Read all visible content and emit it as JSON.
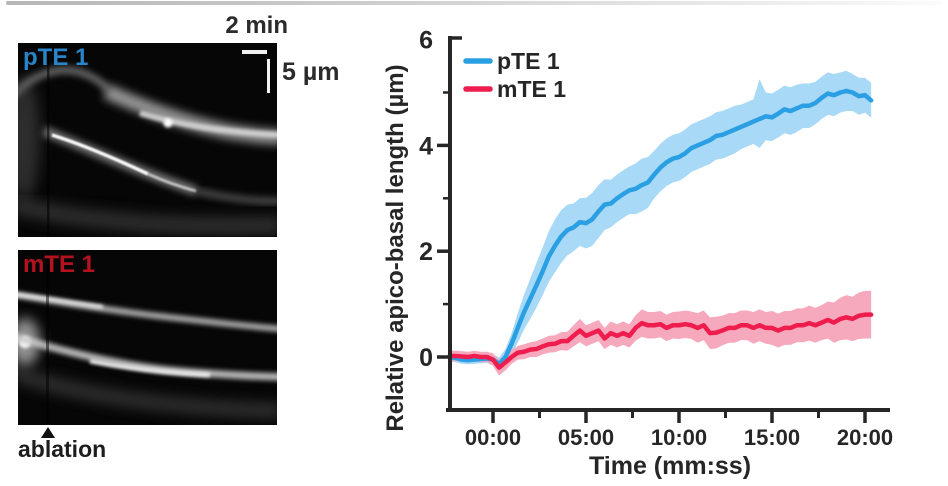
{
  "page": {
    "left_panel": {
      "time_scalebar_label": "2 min",
      "length_scalebar_label": "5 µm",
      "kymographs": [
        {
          "label": "pTE 1",
          "label_color": "#2a84c8"
        },
        {
          "label": "mTE 1",
          "label_color": "#b5121f"
        }
      ],
      "ablation": {
        "marker": "▲",
        "label": "ablation"
      }
    }
  },
  "chart_data": {
    "type": "line",
    "title": "",
    "xlabel": "Time (mm:ss)",
    "ylabel": "Relative apico-basal length (µm)",
    "x_unit": "minutes relative to ablation",
    "xlim": [
      -2.4,
      21.3
    ],
    "ylim": [
      -1.0,
      6.2
    ],
    "grid": false,
    "axis_color": "#262626",
    "text_color": "#262626",
    "x_ticks": {
      "major_values": [
        0,
        5,
        10,
        15,
        20
      ],
      "major_labels": [
        "00:00",
        "05:00",
        "10:00",
        "15:00",
        "20:00"
      ],
      "minor_values": [
        2.5,
        7.5,
        12.5,
        17.5
      ]
    },
    "y_ticks": {
      "major_values": [
        0,
        2,
        4,
        6
      ],
      "major_labels": [
        "0",
        "2",
        "4",
        "6"
      ],
      "minor_values": [
        1,
        3,
        5
      ]
    },
    "legend": {
      "position": "top-left",
      "entries": [
        "pTE 1",
        "mTE 1"
      ]
    },
    "x": [
      -2.33,
      -2.0,
      -1.67,
      -1.33,
      -1.0,
      -0.67,
      -0.33,
      0.0,
      0.33,
      0.67,
      1.0,
      1.33,
      1.67,
      2.0,
      2.33,
      2.67,
      3.0,
      3.33,
      3.67,
      4.0,
      4.33,
      4.67,
      5.0,
      5.33,
      5.67,
      6.0,
      6.33,
      6.67,
      7.0,
      7.33,
      7.67,
      8.0,
      8.33,
      8.67,
      9.0,
      9.33,
      9.67,
      10.0,
      10.33,
      10.67,
      11.0,
      11.33,
      11.67,
      12.0,
      12.33,
      12.67,
      13.0,
      13.33,
      13.67,
      14.0,
      14.33,
      14.67,
      15.0,
      15.33,
      15.67,
      16.0,
      16.33,
      16.67,
      17.0,
      17.33,
      17.67,
      18.0,
      18.33,
      18.67,
      19.0,
      19.33,
      19.67,
      20.0,
      20.33
    ],
    "series": [
      {
        "name": "pTE 1",
        "line_color": "#2b9fe3",
        "band_color": "#a8d9f6",
        "y": [
          0.0,
          -0.02,
          -0.05,
          -0.06,
          -0.05,
          -0.04,
          -0.03,
          -0.05,
          -0.13,
          0.0,
          0.25,
          0.55,
          0.85,
          1.1,
          1.35,
          1.62,
          1.9,
          2.1,
          2.28,
          2.4,
          2.45,
          2.55,
          2.53,
          2.6,
          2.75,
          2.88,
          2.9,
          3.0,
          3.08,
          3.15,
          3.18,
          3.25,
          3.3,
          3.45,
          3.58,
          3.68,
          3.75,
          3.78,
          3.85,
          3.95,
          4.0,
          4.05,
          4.1,
          4.18,
          4.2,
          4.25,
          4.3,
          4.35,
          4.4,
          4.45,
          4.5,
          4.55,
          4.53,
          4.6,
          4.68,
          4.65,
          4.7,
          4.75,
          4.75,
          4.8,
          4.9,
          4.98,
          4.95,
          5.0,
          5.03,
          5.0,
          4.93,
          4.95,
          4.85
        ],
        "y_upper": [
          0.08,
          0.06,
          0.03,
          0.02,
          0.03,
          0.04,
          0.05,
          0.05,
          -0.01,
          0.15,
          0.45,
          0.83,
          1.18,
          1.48,
          1.77,
          2.07,
          2.38,
          2.6,
          2.78,
          2.88,
          2.9,
          3.0,
          3.01,
          3.1,
          3.25,
          3.36,
          3.35,
          3.45,
          3.53,
          3.6,
          3.66,
          3.75,
          3.78,
          3.9,
          4.03,
          4.13,
          4.2,
          4.23,
          4.3,
          4.4,
          4.45,
          4.5,
          4.55,
          4.63,
          4.65,
          4.7,
          4.75,
          4.77,
          4.82,
          4.87,
          5.25,
          5.0,
          4.98,
          5.05,
          5.13,
          5.1,
          5.15,
          5.17,
          5.17,
          5.2,
          5.3,
          5.38,
          5.35,
          5.38,
          5.41,
          5.35,
          5.28,
          5.28,
          5.18
        ],
        "y_lower": [
          -0.08,
          -0.1,
          -0.13,
          -0.14,
          -0.13,
          -0.12,
          -0.11,
          -0.15,
          -0.25,
          -0.15,
          0.05,
          0.27,
          0.52,
          0.72,
          0.93,
          1.17,
          1.42,
          1.6,
          1.78,
          1.92,
          2.0,
          2.1,
          2.05,
          2.1,
          2.25,
          2.4,
          2.45,
          2.55,
          2.63,
          2.7,
          2.7,
          2.75,
          2.82,
          3.0,
          3.13,
          3.23,
          3.3,
          3.33,
          3.4,
          3.5,
          3.55,
          3.6,
          3.65,
          3.73,
          3.75,
          3.8,
          3.85,
          3.93,
          3.98,
          4.03,
          3.95,
          4.1,
          4.08,
          4.15,
          4.23,
          4.2,
          4.25,
          4.33,
          4.33,
          4.4,
          4.5,
          4.58,
          4.55,
          4.62,
          4.65,
          4.65,
          4.58,
          4.62,
          4.52
        ]
      },
      {
        "name": "mTE 1",
        "line_color": "#ee1d4e",
        "band_color": "#f6a9bd",
        "y": [
          0.02,
          0.02,
          0.01,
          0.0,
          0.02,
          0.0,
          0.0,
          -0.05,
          -0.2,
          -0.1,
          0.0,
          0.08,
          0.1,
          0.14,
          0.15,
          0.2,
          0.24,
          0.25,
          0.3,
          0.3,
          0.4,
          0.5,
          0.4,
          0.45,
          0.5,
          0.35,
          0.45,
          0.4,
          0.45,
          0.4,
          0.55,
          0.64,
          0.6,
          0.6,
          0.62,
          0.55,
          0.6,
          0.6,
          0.62,
          0.6,
          0.55,
          0.6,
          0.45,
          0.46,
          0.5,
          0.55,
          0.55,
          0.6,
          0.6,
          0.55,
          0.6,
          0.55,
          0.55,
          0.5,
          0.55,
          0.55,
          0.6,
          0.6,
          0.64,
          0.6,
          0.65,
          0.7,
          0.65,
          0.72,
          0.75,
          0.72,
          0.78,
          0.8,
          0.8
        ],
        "y_upper": [
          0.12,
          0.12,
          0.11,
          0.1,
          0.12,
          0.1,
          0.1,
          0.07,
          -0.05,
          0.05,
          0.13,
          0.21,
          0.24,
          0.28,
          0.3,
          0.35,
          0.4,
          0.41,
          0.47,
          0.48,
          0.6,
          0.72,
          0.6,
          0.65,
          0.7,
          0.55,
          0.67,
          0.62,
          0.67,
          0.62,
          0.79,
          0.9,
          0.85,
          0.85,
          0.87,
          0.8,
          0.85,
          0.86,
          0.88,
          0.86,
          0.83,
          0.88,
          0.75,
          0.76,
          0.78,
          0.83,
          0.83,
          0.88,
          0.88,
          0.85,
          0.9,
          0.85,
          0.87,
          0.82,
          0.87,
          0.87,
          0.92,
          0.92,
          0.97,
          0.93,
          0.98,
          1.05,
          1.03,
          1.12,
          1.17,
          1.14,
          1.22,
          1.25,
          1.25
        ],
        "y_lower": [
          -0.08,
          -0.08,
          -0.09,
          -0.1,
          -0.08,
          -0.1,
          -0.1,
          -0.17,
          -0.35,
          -0.25,
          -0.13,
          -0.05,
          -0.04,
          0.0,
          0.0,
          0.05,
          0.08,
          0.09,
          0.13,
          0.12,
          0.2,
          0.28,
          0.2,
          0.25,
          0.3,
          0.15,
          0.23,
          0.18,
          0.23,
          0.18,
          0.31,
          0.38,
          0.35,
          0.35,
          0.37,
          0.3,
          0.35,
          0.34,
          0.36,
          0.34,
          0.27,
          0.32,
          0.15,
          0.16,
          0.22,
          0.27,
          0.27,
          0.32,
          0.32,
          0.25,
          0.3,
          0.25,
          0.23,
          0.18,
          0.23,
          0.23,
          0.28,
          0.28,
          0.31,
          0.27,
          0.32,
          0.35,
          0.27,
          0.32,
          0.33,
          0.3,
          0.34,
          0.35,
          0.35
        ]
      }
    ]
  }
}
